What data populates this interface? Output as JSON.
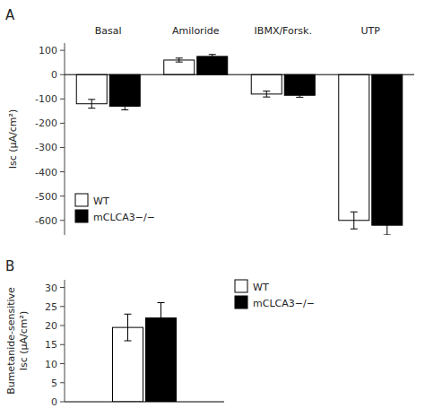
{
  "chart_data": [
    {
      "type": "bar",
      "title": "A",
      "categories": [
        "Basal",
        "Amiloride",
        "IBMX/Forsk.",
        "UTP"
      ],
      "series": [
        {
          "name": "WT",
          "color": "white",
          "values": [
            -120,
            60,
            -80,
            -600
          ],
          "errors": [
            18,
            8,
            12,
            35
          ]
        },
        {
          "name": "mCLCA3−/−",
          "color": "black",
          "values": [
            -130,
            75,
            -85,
            -620
          ],
          "errors": [
            15,
            8,
            8,
            40
          ]
        }
      ],
      "y_label": "Isc (μA/cm²)",
      "ylim": [
        -660,
        130
      ],
      "yticks": [
        100,
        0,
        -100,
        -200,
        -300,
        -400,
        -500,
        -600
      ],
      "legend": "lower left"
    },
    {
      "type": "bar",
      "title": "B",
      "categories": [
        null
      ],
      "series": [
        {
          "name": "WT",
          "color": "white",
          "values": [
            19.5
          ],
          "errors": [
            3.5
          ]
        },
        {
          "name": "mCLCA3−/−",
          "color": "black",
          "values": [
            22
          ],
          "errors": [
            4
          ]
        }
      ],
      "y_label": "Bumetanide-sensitive\nIsc (μA/cm²)",
      "ylim": [
        0,
        32
      ],
      "yticks": [
        0,
        5,
        10,
        15,
        20,
        25,
        30
      ],
      "legend": "upper right"
    }
  ]
}
